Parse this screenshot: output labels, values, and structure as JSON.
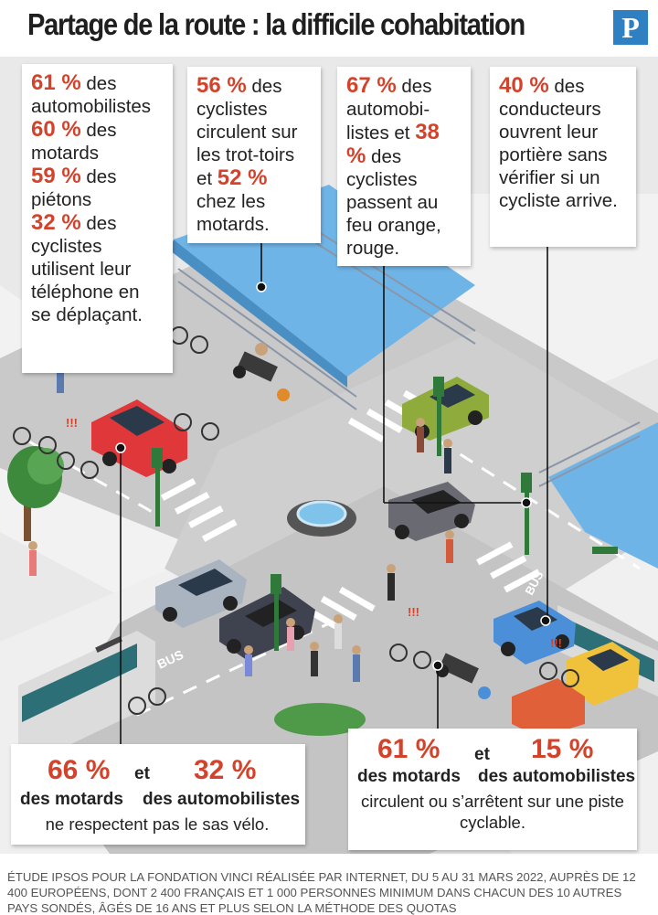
{
  "header": {
    "title": "Partage de la route : la difficile cohabitation",
    "logo_letter": "P"
  },
  "colors": {
    "accent_red": "#d3432b",
    "logo_blue": "#2f80c2",
    "road_gray": "#c9c9c9",
    "water_blue": "#6fb4e6"
  },
  "stats": {
    "phone_use": {
      "p1": "61 %",
      "t1": " des automobilistes",
      "p2": "60 %",
      "t2": " des motards",
      "p3": "59 %",
      "t3": " des piétons",
      "p4": "32 %",
      "t4": " des cyclistes utilisent leur téléphone en se déplaçant."
    },
    "sidewalk": {
      "p1": "56 %",
      "t1": " des cyclistes circulent sur les trot-toirs et ",
      "p2": "52 %",
      "t2": " chez les motards."
    },
    "orange_light": {
      "p1": "67 %",
      "t1": " des automobi-listes et ",
      "p2": "38 %",
      "t2": " des cyclistes passent au feu orange, rouge."
    },
    "door": {
      "p1": "40 %",
      "t1": " des conducteurs ouvrent leur portière sans vérifier si un cycliste arrive."
    },
    "bike_box": {
      "p1": "66 %",
      "et": "et",
      "p2": "32 %",
      "l1": "des motards",
      "l2": "des automobilistes",
      "text": "ne respectent pas le sas vélo."
    },
    "bike_lane": {
      "p1": "61 %",
      "et": "et",
      "p2": "15 %",
      "l1": "des motards",
      "l2": "des automobilistes",
      "text": "circulent ou s’arrêtent sur une piste cyclable."
    }
  },
  "scene_labels": {
    "bus_lane_left": "BUS",
    "bus_lane_right": "BUS",
    "alert_mark": "!!!"
  },
  "footer": {
    "source": "Étude Ipsos pour la fondation Vinci réalisée par internet, du 5 au 31 mars 2022, auprès de 12 400 Européens, dont 2 400 Français et 1 000 personnes minimum dans chacun des 10 autres pays sondés, âgés de 16 ans et plus selon la méthode des quotas"
  }
}
